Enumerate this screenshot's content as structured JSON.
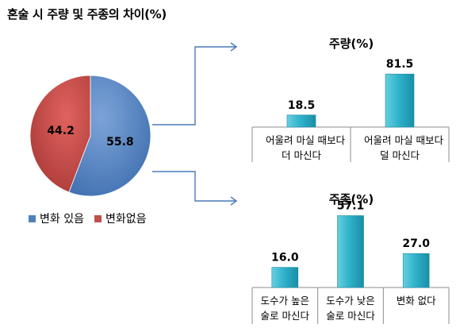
{
  "title": "혼술 시 주량 및 주종의 차이(%)",
  "colors": {
    "blue": "#4f81bd",
    "red": "#c0504d",
    "teal": "#31b0c8",
    "arrow": "#4a7ab8"
  },
  "chart_data": [
    {
      "type": "pie",
      "title": "",
      "slices": [
        {
          "name": "변화 있음",
          "value": 55.8,
          "label": "55.8"
        },
        {
          "name": "변화없음",
          "value": 44.2,
          "label": "44.2"
        }
      ],
      "legend": "bottom"
    },
    {
      "type": "bar",
      "title": "주량(%)",
      "categories": [
        [
          "어울려 마실 때보다",
          "더 마신다"
        ],
        [
          "어울려 마실 때보다",
          "덜 마신다"
        ]
      ],
      "values": [
        18.5,
        81.5
      ],
      "labels": [
        "18.5",
        "81.5"
      ],
      "ylim": [
        0,
        100
      ]
    },
    {
      "type": "bar",
      "title": "주종(%)",
      "categories": [
        [
          "도수가 높은",
          "술로 마신다"
        ],
        [
          "도수가 낮은",
          "술로 마신다"
        ],
        [
          "변화 없다"
        ]
      ],
      "values": [
        16.0,
        57.1,
        27.0
      ],
      "labels": [
        "16.0",
        "57.1",
        "27.0"
      ],
      "ylim": [
        0,
        70
      ]
    }
  ]
}
